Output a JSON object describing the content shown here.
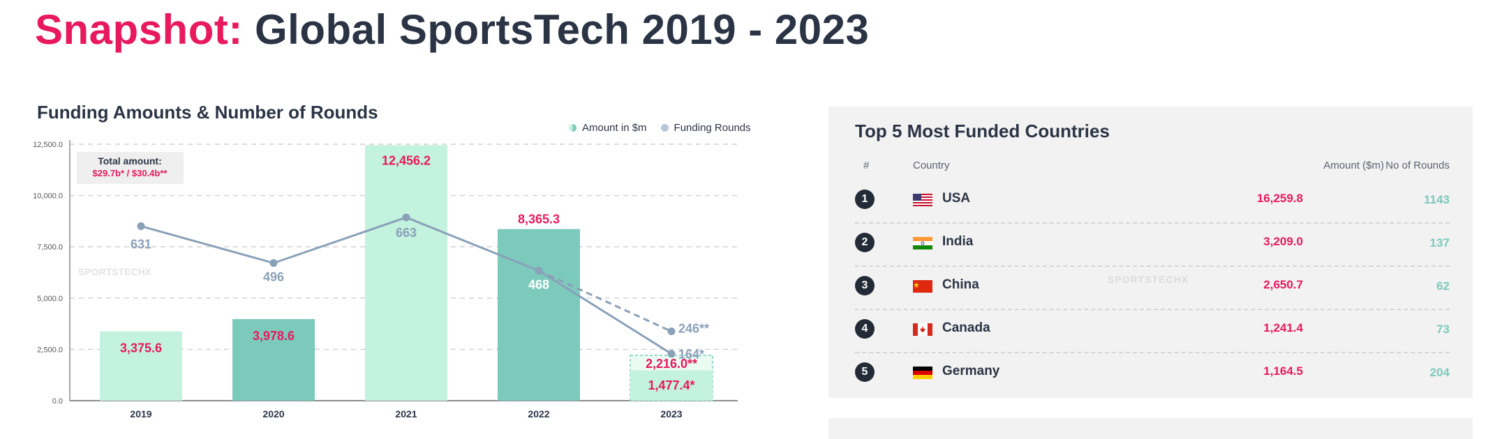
{
  "page": {
    "title_accent": "Snapshot:",
    "title_main": "Global SportsTech 2019 - 2023"
  },
  "chart_data": {
    "type": "bar",
    "title": "Funding Amounts & Number of Rounds",
    "legend": [
      "Amount in $m",
      "Funding Rounds"
    ],
    "categories": [
      "2019",
      "2020",
      "2021",
      "2022",
      "2023"
    ],
    "series": [
      {
        "name": "Amount in $m",
        "values": [
          3375.6,
          3978.6,
          12456.2,
          8365.3,
          1477.4
        ]
      },
      {
        "name": "Funding Rounds",
        "values": [
          631,
          496,
          663,
          468,
          164
        ]
      }
    ],
    "value_labels": [
      "3,375.6",
      "3,978.6",
      "12,456.2",
      "8,365.3",
      "1,477.4*"
    ],
    "round_labels": [
      "631",
      "496",
      "663",
      "468",
      "164*"
    ],
    "projection": {
      "amount_value": 2216.0,
      "amount_label": "2,216.0**",
      "rounds_value": 246,
      "rounds_label": "246**"
    },
    "y_ticks": [
      0,
      2500,
      5000,
      7500,
      10000,
      12500
    ],
    "y_tick_labels": [
      "0.0",
      "2,500.0",
      "5,000.0",
      "7,500.0",
      "10,000.0",
      "12,500.0"
    ],
    "ylim": [
      0,
      12500
    ],
    "total_label": "Total amount:",
    "total_value": "$29.7b* / $30.4b**",
    "watermark": "SPORTSTECHX",
    "colors": {
      "bar_light": "#c3f2de",
      "bar_dark": "#7ccabc",
      "rounds_line": "#8aa1b8",
      "value_label": "#e8195d",
      "round_label": "#8aa1b8"
    }
  },
  "top_countries": {
    "title": "Top 5 Most Funded Countries",
    "headers": {
      "rank": "#",
      "country": "Country",
      "amount": "Amount  ($m)",
      "rounds": "No of Rounds"
    },
    "rows": [
      {
        "rank": "1",
        "country": "USA",
        "amount": "16,259.8",
        "rounds": "1143",
        "flag": "us-flag-icon"
      },
      {
        "rank": "2",
        "country": "India",
        "amount": "3,209.0",
        "rounds": "137",
        "flag": "india-flag-icon"
      },
      {
        "rank": "3",
        "country": "China",
        "amount": "2,650.7",
        "rounds": "62",
        "flag": "china-flag-icon"
      },
      {
        "rank": "4",
        "country": "Canada",
        "amount": "1,241.4",
        "rounds": "73",
        "flag": "canada-flag-icon"
      },
      {
        "rank": "5",
        "country": "Germany",
        "amount": "1,164.5",
        "rounds": "204",
        "flag": "germany-flag-icon"
      }
    ],
    "watermark": "SPORTSTECHX"
  }
}
